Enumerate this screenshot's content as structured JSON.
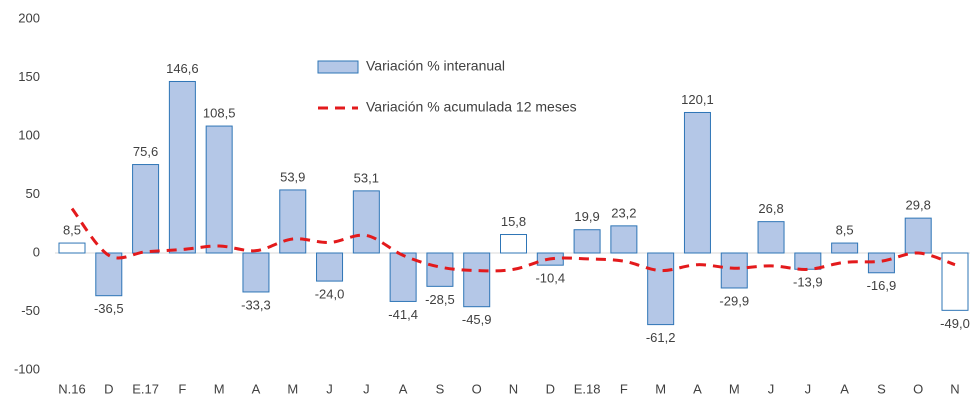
{
  "chart_data": {
    "type": "bar-line",
    "categories": [
      "N.16",
      "D",
      "E.17",
      "F",
      "M",
      "A",
      "M",
      "J",
      "J",
      "A",
      "S",
      "O",
      "N",
      "D",
      "E.18",
      "F",
      "M",
      "A",
      "M",
      "J",
      "J",
      "A",
      "S",
      "O",
      "N"
    ],
    "series": [
      {
        "name": "Variación % interanual",
        "type": "bar",
        "color": "#b4c7e7",
        "edge_color": "#2e75b6",
        "point_colors": [
          "#ffffff",
          "#b4c7e7",
          "#b4c7e7",
          "#b4c7e7",
          "#b4c7e7",
          "#b4c7e7",
          "#b4c7e7",
          "#b4c7e7",
          "#b4c7e7",
          "#b4c7e7",
          "#b4c7e7",
          "#b4c7e7",
          "#ffffff",
          "#b4c7e7",
          "#b4c7e7",
          "#b4c7e7",
          "#b4c7e7",
          "#b4c7e7",
          "#b4c7e7",
          "#b4c7e7",
          "#b4c7e7",
          "#b4c7e7",
          "#b4c7e7",
          "#b4c7e7",
          "#ffffff"
        ],
        "values": [
          8.5,
          -36.5,
          75.6,
          146.6,
          108.5,
          -33.3,
          53.9,
          -24.0,
          53.1,
          -41.4,
          -28.5,
          -45.9,
          15.8,
          -10.4,
          19.9,
          23.2,
          -61.2,
          120.1,
          -29.9,
          26.8,
          -13.9,
          8.5,
          -16.9,
          29.8,
          -49.0
        ],
        "value_labels": [
          "8,5",
          "-36,5",
          "75,6",
          "146,6",
          "108,5",
          "-33,3",
          "53,9",
          "-24,0",
          "53,1",
          "-41,4",
          "-28,5",
          "-45,9",
          "15,8",
          "-10,4",
          "19,9",
          "23,2",
          "-61,2",
          "120,1",
          "-29,9",
          "26,8",
          "-13,9",
          "8,5",
          "-16,9",
          "29,8",
          "-49,0"
        ]
      },
      {
        "name": "Variación % acumulada 12 meses",
        "type": "line",
        "color": "#e31a1c",
        "dashed": true,
        "values": [
          38,
          -2,
          1,
          3,
          6,
          2,
          12,
          9,
          15,
          -2,
          -12,
          -15,
          -14,
          -5,
          -5,
          -7,
          -15,
          -10,
          -13,
          -11,
          -14,
          -8,
          -7,
          0,
          -10
        ]
      }
    ],
    "ylim": [
      -100,
      200
    ],
    "yticks": [
      -100,
      -50,
      0,
      50,
      100,
      150,
      200
    ],
    "grid": false
  }
}
